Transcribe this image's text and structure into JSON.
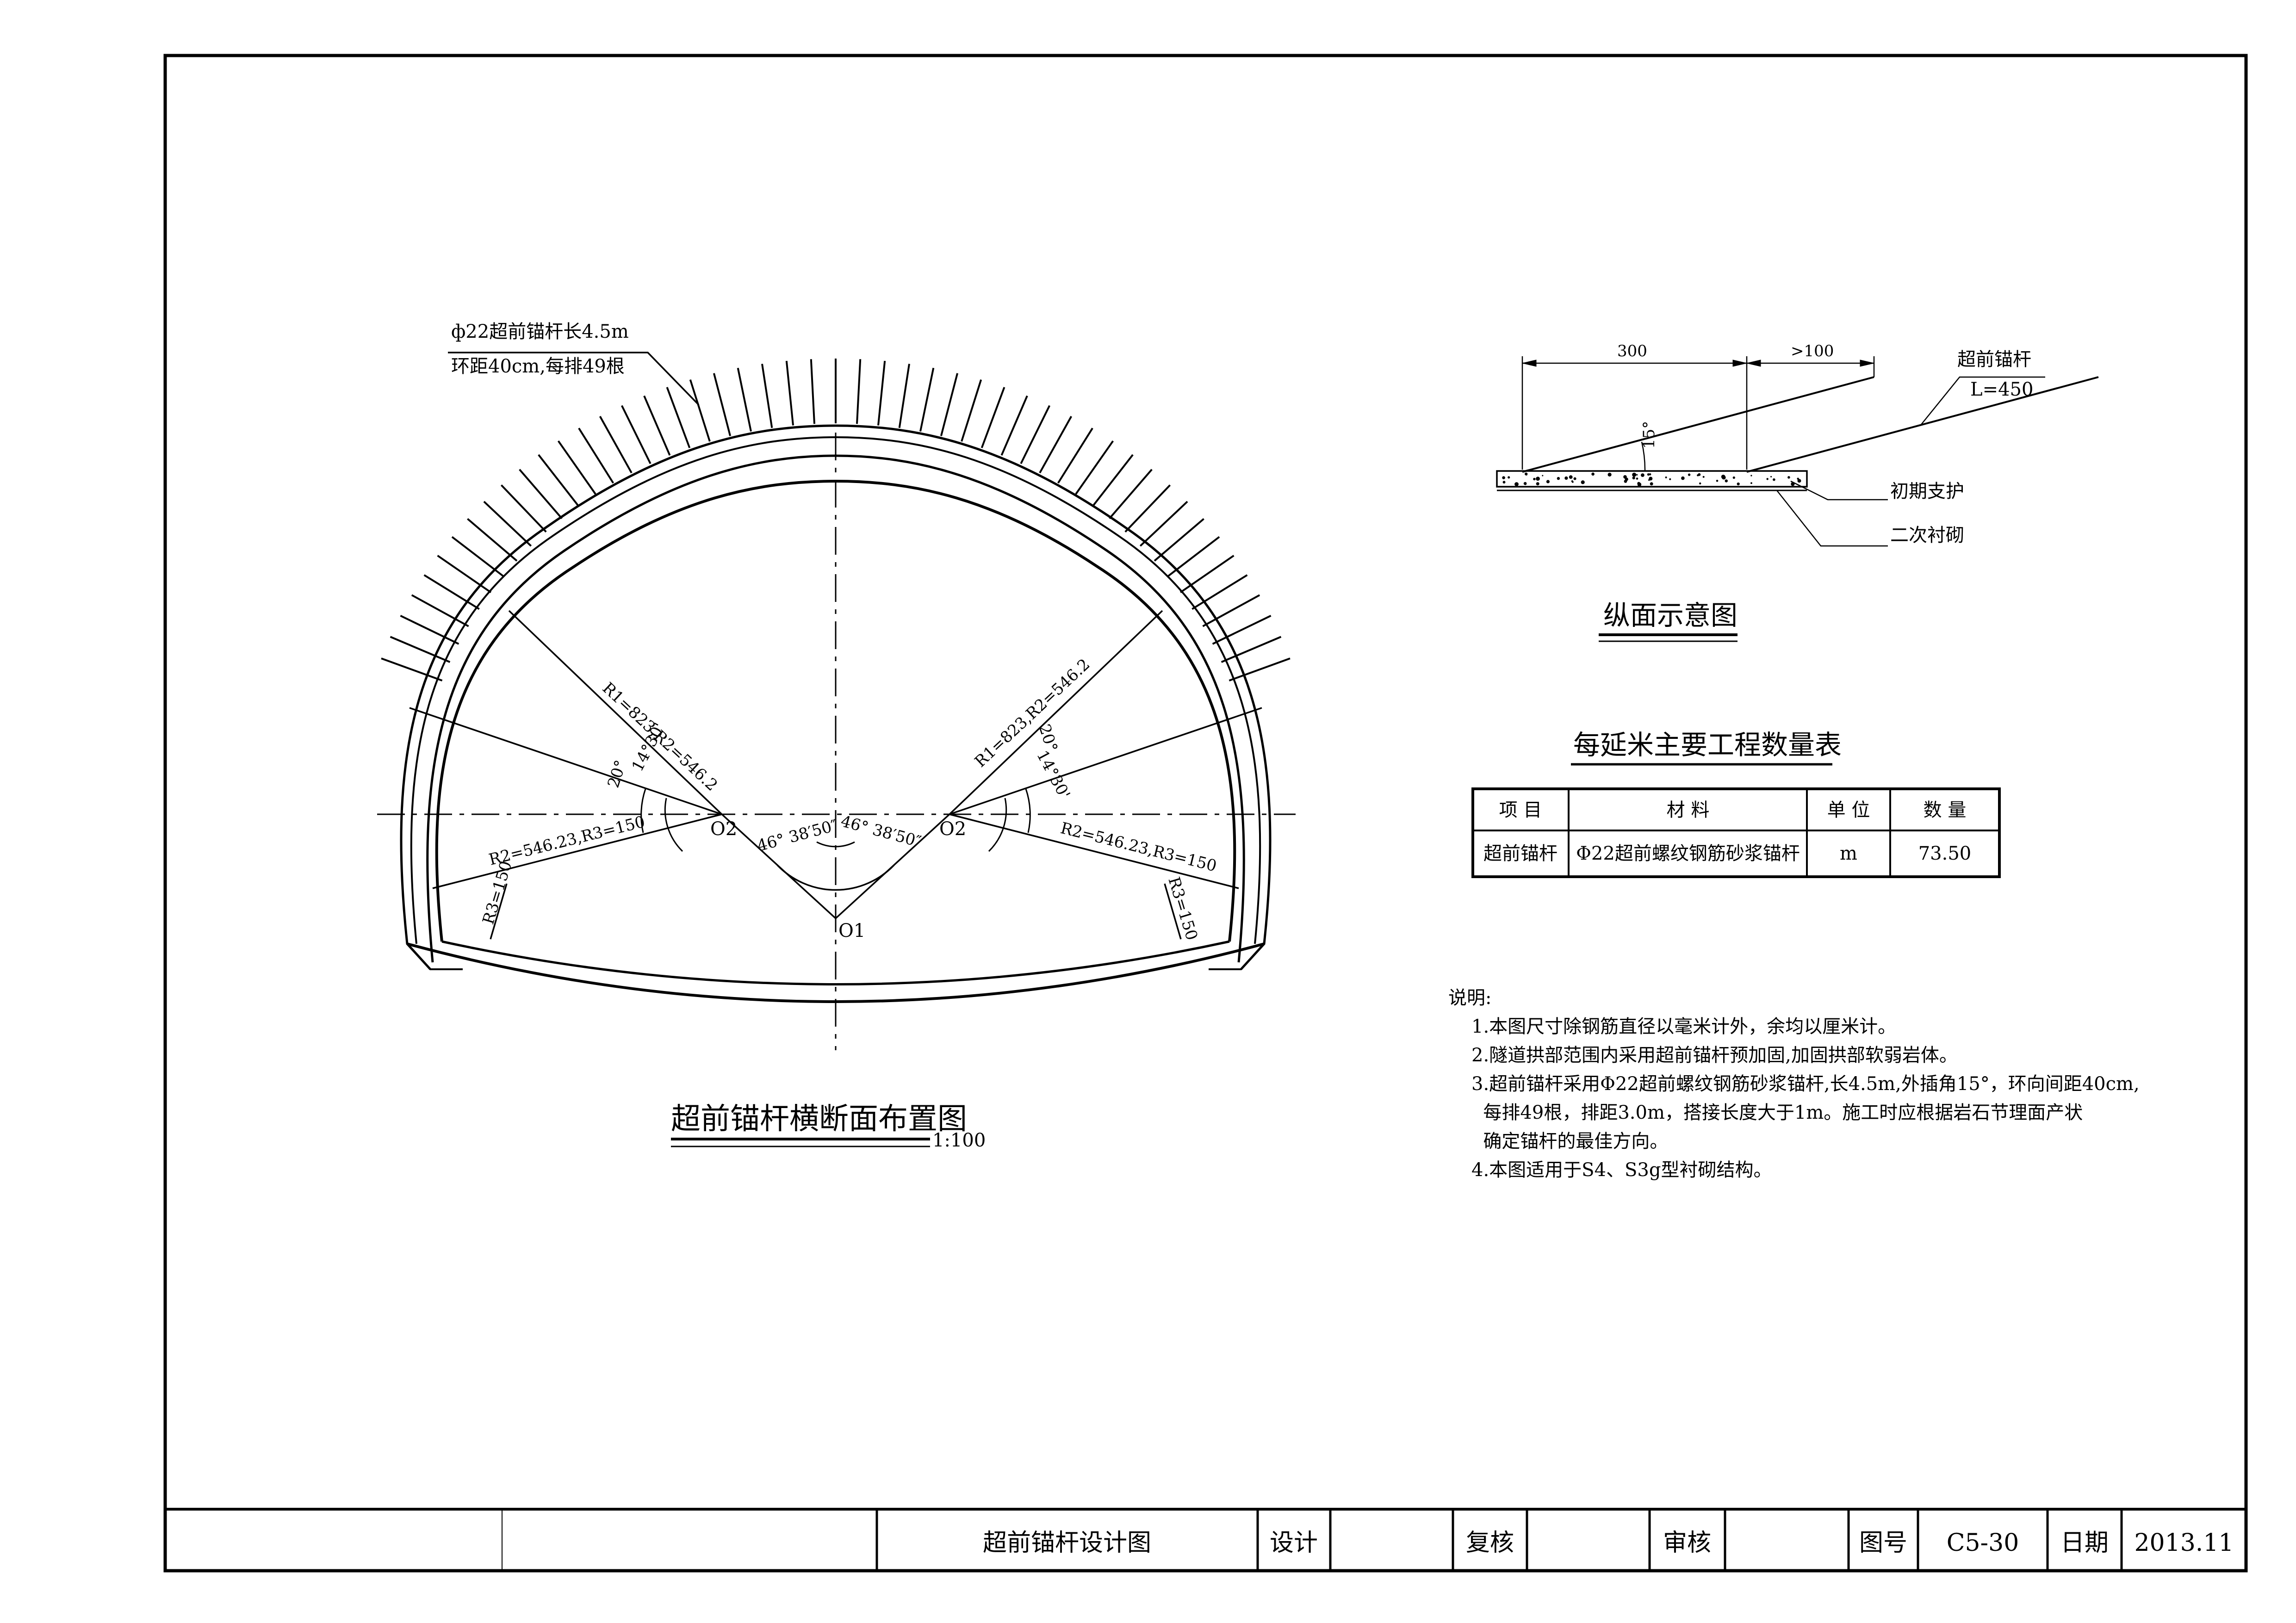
{
  "cross_section": {
    "anchor_label_line1": "ф22超前锚杆长4.5m",
    "anchor_label_line2": "环距40cm,每排49根",
    "left_radius_label": "R1=823,R2=546.2",
    "right_radius_label": "R1=823,R2=546.2",
    "left_angle_20": "20°",
    "left_angle_14": "14°30'",
    "right_angle_20": "20°",
    "right_angle_14": "14°30'",
    "left_r2r3": "R2=546.23,R3=150",
    "right_r2r3": "R2=546.23,R3=150",
    "left_r3": "R3=150",
    "right_r3": "R3=150",
    "left_center_angle": "46° 38′50″",
    "right_center_angle": "46° 38′50″",
    "center_o2_left": "O2",
    "center_o2_right": "O2",
    "center_o1": "O1",
    "title": "超前锚杆横断面布置图",
    "scale": "1:100"
  },
  "profile": {
    "dim_300": "300",
    "dim_100": ">100",
    "angle": "15°",
    "anchor_name": "超前锚杆",
    "anchor_length": "L=450",
    "label_initial": "初期支护",
    "label_secondary": "二次衬砌",
    "title": "纵面示意图"
  },
  "quantity_table": {
    "title": "每延米主要工程数量表",
    "headers": [
      "项  目",
      "材    料",
      "单 位",
      "数  量"
    ],
    "rows": [
      [
        "超前锚杆",
        "Φ22超前螺纹钢筋砂浆锚杆",
        "m",
        "73.50"
      ]
    ]
  },
  "notes": {
    "heading": "说明:",
    "lines": [
      "1.本图尺寸除钢筋直径以毫米计外，余均以厘米计。",
      "2.隧道拱部范围内采用超前锚杆预加固,加固拱部软弱岩体。",
      "3.超前锚杆采用Φ22超前螺纹钢筋砂浆锚杆,长4.5m,外插角15°，环向间距40cm,",
      "  每排49根，排距3.0m，搭接长度大于1m。施工时应根据岩石节理面产状",
      "  确定锚杆的最佳方向。",
      "4.本图适用于S4、S3g型衬砌结构。"
    ]
  },
  "title_block": {
    "drawing_name": "超前锚杆设计图",
    "design": "设计",
    "review": "复核",
    "audit": "审核",
    "drawing_no_label": "图号",
    "drawing_no": "C5-30",
    "date_label": "日期",
    "date": "2013.11"
  }
}
